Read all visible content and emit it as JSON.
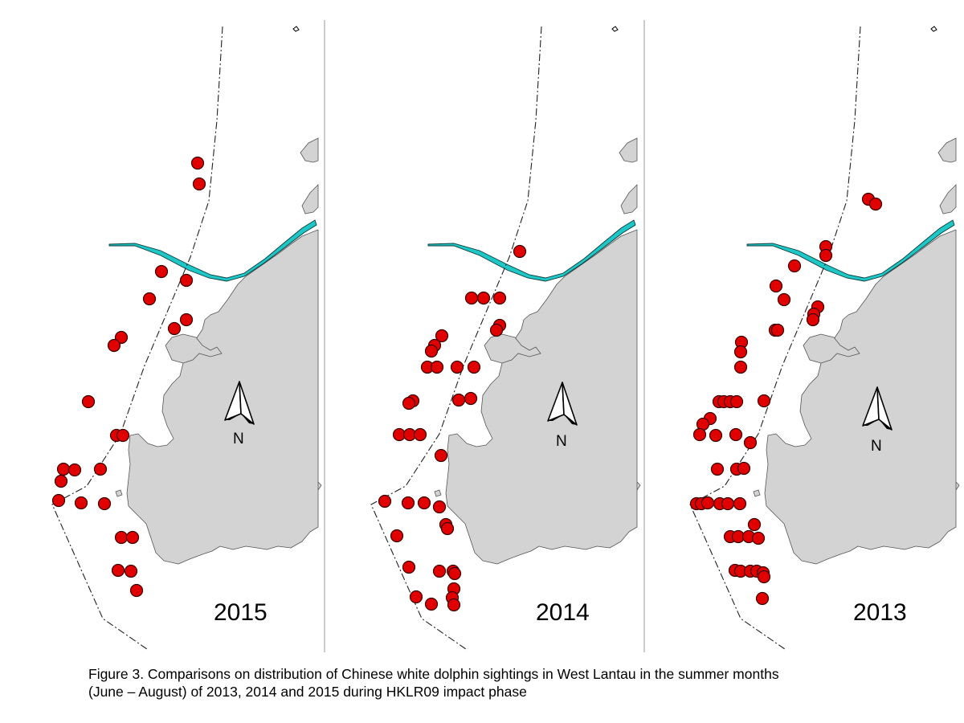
{
  "figure": {
    "caption_line1": "Figure 3.  Comparisons on distribution of Chinese white dolphin sightings in West Lantau in the summer months",
    "caption_line2": "(June – August) of 2013, 2014 and 2015 during HKLR09 impact phase"
  },
  "map": {
    "north_label": "N",
    "colors": {
      "land": "#d3d3d3",
      "sighting": "#e00000",
      "sighting_outline": "#3a0000",
      "alignment": "#1fc6c6",
      "divider": "#999999"
    },
    "panels": [
      {
        "label": "2015",
        "sightings": [
          [
            246,
            203
          ],
          [
            248,
            229
          ],
          [
            201,
            338
          ],
          [
            232,
            349
          ],
          [
            186,
            372
          ],
          [
            232,
            398
          ],
          [
            217,
            409
          ],
          [
            151,
            420
          ],
          [
            142,
            430
          ],
          [
            110,
            500
          ],
          [
            145,
            542
          ],
          [
            153,
            542
          ],
          [
            79,
            584
          ],
          [
            93,
            585
          ],
          [
            125,
            584
          ],
          [
            76,
            599
          ],
          [
            73,
            623
          ],
          [
            101,
            626
          ],
          [
            130,
            627
          ],
          [
            151,
            669
          ],
          [
            165,
            669
          ],
          [
            147,
            710
          ],
          [
            163,
            711
          ],
          [
            170,
            735
          ]
        ]
      },
      {
        "label": "2014",
        "sightings": [
          [
            250,
            313
          ],
          [
            190,
            371
          ],
          [
            205,
            371
          ],
          [
            225,
            371
          ],
          [
            225,
            405
          ],
          [
            221,
            411
          ],
          [
            153,
            418
          ],
          [
            144,
            430
          ],
          [
            140,
            437
          ],
          [
            135,
            457
          ],
          [
            147,
            457
          ],
          [
            172,
            457
          ],
          [
            193,
            457
          ],
          [
            117,
            499
          ],
          [
            112,
            502
          ],
          [
            174,
            498
          ],
          [
            189,
            496
          ],
          [
            100,
            541
          ],
          [
            113,
            541
          ],
          [
            126,
            541
          ],
          [
            152,
            567
          ],
          [
            82,
            624
          ],
          [
            111,
            626
          ],
          [
            131,
            626
          ],
          [
            150,
            631
          ],
          [
            97,
            667
          ],
          [
            158,
            653
          ],
          [
            160,
            658
          ],
          [
            112,
            706
          ],
          [
            150,
            711
          ],
          [
            167,
            711
          ],
          [
            169,
            714
          ],
          [
            168,
            733
          ],
          [
            166,
            744
          ],
          [
            168,
            753
          ],
          [
            121,
            743
          ],
          [
            140,
            752
          ]
        ]
      },
      {
        "label": "2013",
        "sightings": [
          [
            287,
            248
          ],
          [
            296,
            254
          ],
          [
            234,
            307
          ],
          [
            234,
            318
          ],
          [
            195,
            331
          ],
          [
            172,
            356
          ],
          [
            182,
            373
          ],
          [
            224,
            382
          ],
          [
            219,
            391
          ],
          [
            218,
            398
          ],
          [
            171,
            411
          ],
          [
            174,
            411
          ],
          [
            129,
            426
          ],
          [
            128,
            438
          ],
          [
            128,
            457
          ],
          [
            101,
            500
          ],
          [
            107,
            500
          ],
          [
            115,
            500
          ],
          [
            123,
            500
          ],
          [
            157,
            499
          ],
          [
            90,
            521
          ],
          [
            81,
            528
          ],
          [
            77,
            541
          ],
          [
            97,
            542
          ],
          [
            122,
            541
          ],
          [
            140,
            551
          ],
          [
            99,
            584
          ],
          [
            123,
            584
          ],
          [
            132,
            583
          ],
          [
            73,
            627
          ],
          [
            79,
            627
          ],
          [
            87,
            626
          ],
          [
            102,
            627
          ],
          [
            112,
            627
          ],
          [
            127,
            627
          ],
          [
            145,
            653
          ],
          [
            115,
            668
          ],
          [
            125,
            668
          ],
          [
            138,
            668
          ],
          [
            150,
            670
          ],
          [
            121,
            710
          ],
          [
            128,
            711
          ],
          [
            140,
            711
          ],
          [
            148,
            711
          ],
          [
            156,
            713
          ],
          [
            157,
            718
          ],
          [
            155,
            745
          ]
        ]
      }
    ]
  }
}
